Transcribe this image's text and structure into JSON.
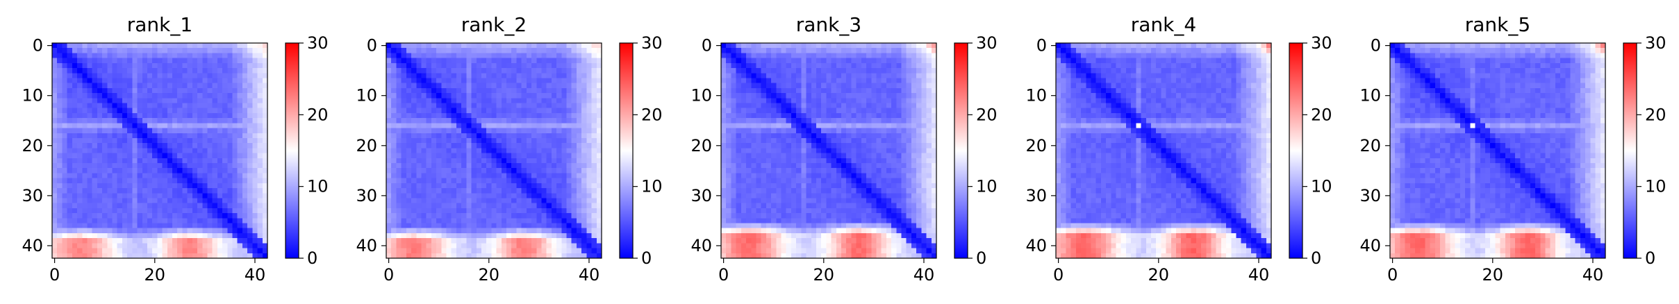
{
  "chart_data": [
    {
      "type": "heatmap",
      "title": "rank_1",
      "matrix_size": 43,
      "x_ticks": [
        "0",
        "20",
        "40"
      ],
      "y_ticks": [
        "0",
        "10",
        "20",
        "30",
        "40"
      ],
      "colorbar": {
        "ticks": [
          "0",
          "10",
          "20",
          "30"
        ],
        "vmin": 0,
        "vmax": 30,
        "colormap": [
          "#0000ff",
          "#ffffff",
          "#ff0000"
        ]
      },
      "features": {
        "diag": 0.6,
        "base": 4.8,
        "bottom_band": 22,
        "bottom_band_rows": [
          37,
          42
        ],
        "corner_top_right": 13,
        "residue_16_row": 9.5,
        "residue_16_col": 7.5,
        "residue_16_self": 0
      }
    },
    {
      "type": "heatmap",
      "title": "rank_2",
      "matrix_size": 43,
      "x_ticks": [
        "0",
        "20",
        "40"
      ],
      "y_ticks": [
        "0",
        "10",
        "20",
        "30",
        "40"
      ],
      "colorbar": {
        "ticks": [
          "0",
          "10",
          "20",
          "30"
        ],
        "vmin": 0,
        "vmax": 30,
        "colormap": [
          "#0000ff",
          "#ffffff",
          "#ff0000"
        ]
      },
      "features": {
        "diag": 0.6,
        "base": 4.8,
        "bottom_band": 22.5,
        "bottom_band_rows": [
          37,
          42
        ],
        "corner_top_right": 14,
        "residue_16_row": 9.5,
        "residue_16_col": 7.5,
        "residue_16_self": 0
      }
    },
    {
      "type": "heatmap",
      "title": "rank_3",
      "matrix_size": 43,
      "x_ticks": [
        "0",
        "20",
        "40"
      ],
      "y_ticks": [
        "0",
        "10",
        "20",
        "30",
        "40"
      ],
      "colorbar": {
        "ticks": [
          "0",
          "10",
          "20",
          "30"
        ],
        "vmin": 0,
        "vmax": 30,
        "colormap": [
          "#0000ff",
          "#ffffff",
          "#ff0000"
        ]
      },
      "features": {
        "diag": 0.6,
        "base": 4.8,
        "bottom_band": 23.5,
        "bottom_band_rows": [
          36,
          42
        ],
        "corner_top_right": 18,
        "residue_16_row": 9.5,
        "residue_16_col": 7.5,
        "residue_16_self": 0
      }
    },
    {
      "type": "heatmap",
      "title": "rank_4",
      "matrix_size": 43,
      "x_ticks": [
        "0",
        "20",
        "40"
      ],
      "y_ticks": [
        "0",
        "10",
        "20",
        "30",
        "40"
      ],
      "colorbar": {
        "ticks": [
          "0",
          "10",
          "20",
          "30"
        ],
        "vmin": 0,
        "vmax": 30,
        "colormap": [
          "#0000ff",
          "#ffffff",
          "#ff0000"
        ]
      },
      "features": {
        "diag": 0.6,
        "base": 4.8,
        "bottom_band": 24,
        "bottom_band_rows": [
          36,
          42
        ],
        "corner_top_right": 19,
        "residue_16_row": 9.5,
        "residue_16_col": 7.5,
        "residue_16_self": 15
      }
    },
    {
      "type": "heatmap",
      "title": "rank_5",
      "matrix_size": 43,
      "x_ticks": [
        "0",
        "20",
        "40"
      ],
      "y_ticks": [
        "0",
        "10",
        "20",
        "30",
        "40"
      ],
      "colorbar": {
        "ticks": [
          "0",
          "10",
          "20",
          "30"
        ],
        "vmin": 0,
        "vmax": 30,
        "colormap": [
          "#0000ff",
          "#ffffff",
          "#ff0000"
        ]
      },
      "features": {
        "diag": 0.6,
        "base": 4.8,
        "bottom_band": 24,
        "bottom_band_rows": [
          36,
          42
        ],
        "corner_top_right": 20,
        "residue_16_row": 9.5,
        "residue_16_col": 7.5,
        "residue_16_self": 15
      }
    }
  ]
}
